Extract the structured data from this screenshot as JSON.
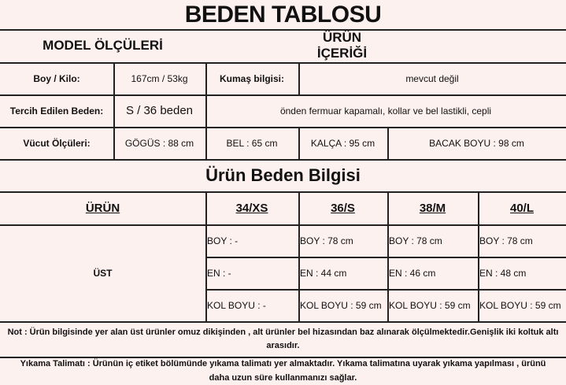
{
  "title": "BEDEN TABLOSU",
  "model_header": "MODEL ÖLÇÜLERİ",
  "product_header": "ÜRÜN İÇERİĞİ",
  "rows": {
    "boy_kilo_label": "Boy / Kilo:",
    "boy_kilo_value": "167cm / 53kg",
    "fabric_label": "Kumaş bilgisi:",
    "fabric_value": "mevcut değil",
    "size_label": "Tercih Edilen Beden:",
    "size_value": "S / 36 beden",
    "description": "önden fermuar kapamalı, kollar ve bel lastikli, cepli",
    "body_label": "Vücut Ölçüleri:",
    "chest": "GÖGÜS : 88 cm",
    "waist": "BEL : 65 cm",
    "hip": "KALÇA : 95 cm",
    "leg": "BACAK BOYU : 98 cm"
  },
  "size_info_title": "Ürün Beden Bilgisi",
  "size_table": {
    "headers": [
      "ÜRÜN",
      "34/XS",
      "36/S",
      "38/M",
      "40/L"
    ],
    "product": "ÜST",
    "cols": [
      [
        "BOY : -",
        "EN : -",
        "KOL BOYU : -"
      ],
      [
        "BOY : 78 cm",
        "EN : 44 cm",
        "KOL BOYU : 59 cm"
      ],
      [
        "BOY : 78 cm",
        "EN : 46 cm",
        "KOL BOYU : 59 cm"
      ],
      [
        "BOY : 78 cm",
        "EN : 48 cm",
        "KOL BOYU : 59 cm"
      ]
    ]
  },
  "note": "Not : Ürün bilgisinde yer alan üst ürünler omuz dikişinden , alt ürünler bel hizasından baz alınarak ölçülmektedir.Genişlik iki koltuk altı arasıdır.",
  "washing": "Yıkama Talimatı : Ürünün iç etiket bölümünde yıkama talimatı yer almaktadır. Yıkama talimatına uyarak yıkama yapılması , ürünü daha uzun süre kullanmanızı sağlar."
}
